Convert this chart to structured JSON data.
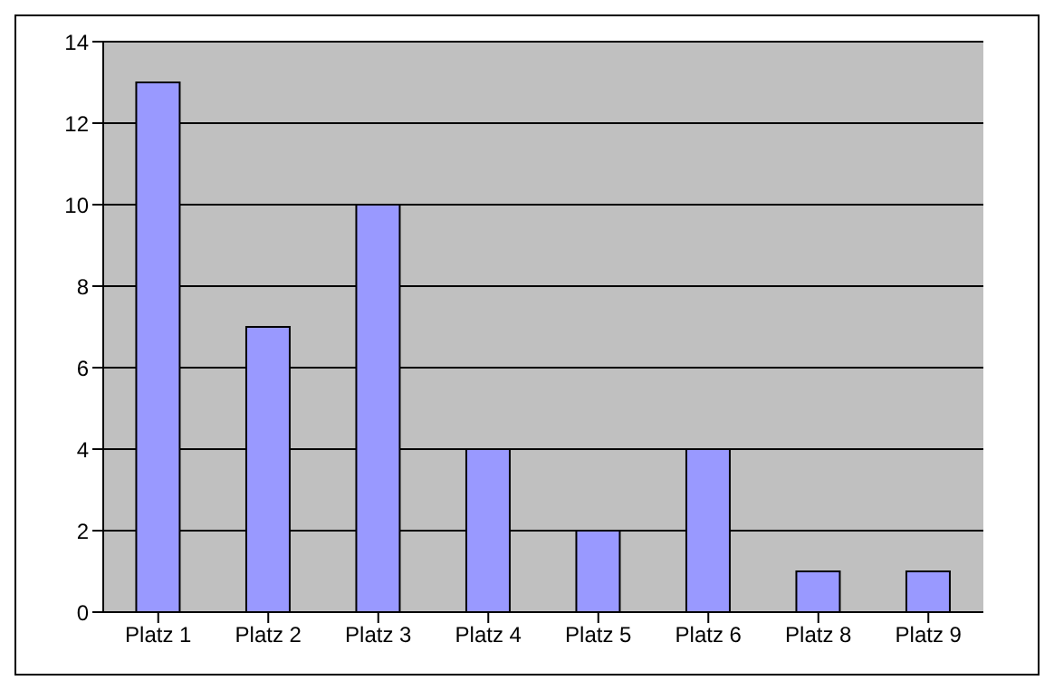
{
  "chart_data": {
    "type": "bar",
    "categories": [
      "Platz 1",
      "Platz 2",
      "Platz 3",
      "Platz 4",
      "Platz 5",
      "Platz 6",
      "Platz 8",
      "Platz 9"
    ],
    "values": [
      13,
      7,
      10,
      4,
      2,
      4,
      1,
      1
    ],
    "color": "#9999ff",
    "ylim": [
      0,
      14
    ],
    "yticks": [
      0,
      2,
      4,
      6,
      8,
      10,
      12,
      14
    ],
    "grid": "y"
  }
}
